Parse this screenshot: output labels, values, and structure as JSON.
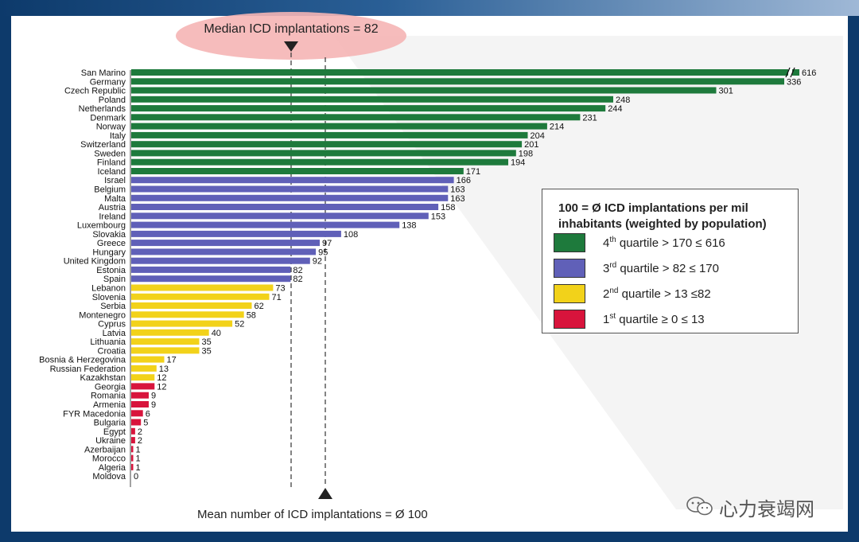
{
  "chart_data": {
    "type": "bar",
    "orientation": "horizontal",
    "categories": [
      "San Marino",
      "Germany",
      "Czech Republic",
      "Poland",
      "Netherlands",
      "Denmark",
      "Norway",
      "Italy",
      "Switzerland",
      "Sweden",
      "Finland",
      "Iceland",
      "Israel",
      "Belgium",
      "Malta",
      "Austria",
      "Ireland",
      "Luxembourg",
      "Slovakia",
      "Greece",
      "Hungary",
      "United Kingdom",
      "Estonia",
      "Spain",
      "Lebanon",
      "Slovenia",
      "Serbia",
      "Montenegro",
      "Cyprus",
      "Latvia",
      "Lithuania",
      "Croatia",
      "Bosnia & Herzegovina",
      "Russian Federation",
      "Kazakhstan",
      "Georgia",
      "Romania",
      "Armenia",
      "FYR Macedonia",
      "Bulgaria",
      "Egypt",
      "Ukraine",
      "Azerbaijan",
      "Morocco",
      "Algeria",
      "Moldova"
    ],
    "values": [
      616,
      336,
      301,
      248,
      244,
      231,
      214,
      204,
      201,
      198,
      194,
      171,
      166,
      163,
      163,
      158,
      153,
      138,
      108,
      97,
      95,
      92,
      82,
      82,
      73,
      71,
      62,
      58,
      52,
      40,
      35,
      35,
      17,
      13,
      12,
      12,
      9,
      9,
      6,
      5,
      2,
      2,
      1,
      1,
      1,
      0
    ],
    "axis_break": {
      "category": "San Marino",
      "shown_as": "broken bar"
    },
    "median": 82,
    "mean": 100,
    "median_label": "Median ICD implantations = 82",
    "mean_label": "Mean number of ICD implantations = Ø 100",
    "quartile_colors": {
      "q4": "#1e7a3c",
      "q3": "#6060b8",
      "q2": "#f2d21a",
      "q1": "#d8143c"
    },
    "legend": {
      "title": "100 = Ø ICD implantations per mil inhabitants (weighted by population)",
      "items": [
        {
          "ordinal": "4",
          "suffix": "th",
          "text": " quartile > 170 ≤ 616",
          "color": "#1e7a3c"
        },
        {
          "ordinal": "3",
          "suffix": "rd",
          "text": " quartile > 82 ≤ 170",
          "color": "#6060b8"
        },
        {
          "ordinal": "2",
          "suffix": "nd",
          "text": " quartile > 13 ≤82",
          "color": "#f2d21a"
        },
        {
          "ordinal": "1",
          "suffix": "st",
          "text": " quartile ≥ 0 ≤ 13",
          "color": "#d8143c"
        }
      ],
      "placement": "right-middle"
    }
  },
  "watermark": {
    "text": "心力衰竭网",
    "icon": "wechat-icon"
  }
}
